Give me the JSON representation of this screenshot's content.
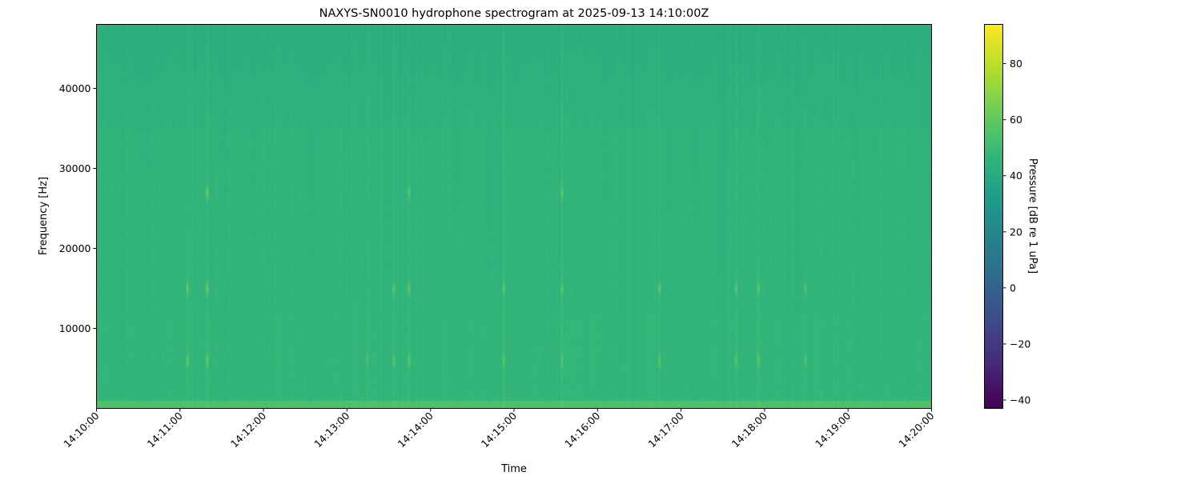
{
  "chart_data": {
    "type": "heatmap",
    "title": "NAXYS-SN0010 hydrophone spectrogram at 2025-09-13 14:10:00Z",
    "xlabel": "Time",
    "ylabel": "Frequency [Hz]",
    "xlim": [
      "14:10:00",
      "14:20:00"
    ],
    "ylim": [
      0,
      48000
    ],
    "x_ticks": [
      "14:10:00",
      "14:11:00",
      "14:12:00",
      "14:13:00",
      "14:14:00",
      "14:15:00",
      "14:16:00",
      "14:17:00",
      "14:18:00",
      "14:19:00",
      "14:20:00"
    ],
    "y_ticks": [
      10000,
      20000,
      30000,
      40000
    ],
    "colormap": "viridis",
    "colorbar": {
      "label": "Pressure [dB re 1 uPa]",
      "range": [
        -43,
        94
      ],
      "ticks": [
        -40,
        -20,
        0,
        20,
        40,
        60,
        80
      ]
    },
    "background_level_db": {
      "0-1000 Hz": 55,
      "1000-12000 Hz": 47,
      "12000-35000 Hz": 46,
      "35000-48000 Hz": 43
    },
    "transient_events": [
      {
        "time": "14:11:05",
        "freqs_hz": [
          6000,
          15000
        ],
        "peak_db": 65
      },
      {
        "time": "14:11:19",
        "freqs_hz": [
          6000,
          15000,
          27000
        ],
        "peak_db": 68
      },
      {
        "time": "14:13:14",
        "freqs_hz": [
          6000
        ],
        "peak_db": 58
      },
      {
        "time": "14:13:33",
        "freqs_hz": [
          6000,
          15000
        ],
        "peak_db": 63
      },
      {
        "time": "14:13:44",
        "freqs_hz": [
          6000,
          15000,
          27000
        ],
        "peak_db": 65
      },
      {
        "time": "14:14:52",
        "freqs_hz": [
          6000,
          15000
        ],
        "peak_db": 62
      },
      {
        "time": "14:15:34",
        "freqs_hz": [
          6000,
          15000,
          27000
        ],
        "peak_db": 63
      },
      {
        "time": "14:16:44",
        "freqs_hz": [
          6000,
          15000
        ],
        "peak_db": 63
      },
      {
        "time": "14:17:39",
        "freqs_hz": [
          6000,
          15000
        ],
        "peak_db": 63
      },
      {
        "time": "14:17:55",
        "freqs_hz": [
          6000,
          15000
        ],
        "peak_db": 64
      },
      {
        "time": "14:18:29",
        "freqs_hz": [
          6000,
          15000
        ],
        "peak_db": 60
      }
    ],
    "grid": false
  }
}
